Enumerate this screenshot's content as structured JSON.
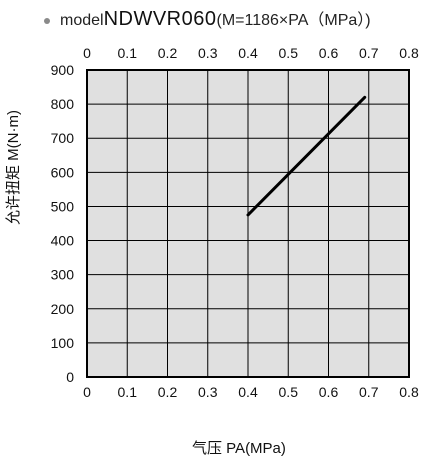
{
  "title": {
    "prefix": "model",
    "model": "NDWVR060",
    "formula": "(M=1186×PA（MPa）)"
  },
  "chart_data": {
    "type": "line",
    "title": "modelNDWVR060(M=1186×PA（MPa）)",
    "xlabel": "气压 PA(MPa)",
    "ylabel": "允许扭矩 M(N·m)",
    "xlim": [
      0,
      0.8
    ],
    "ylim": [
      0,
      900
    ],
    "x_ticks": [
      "0",
      "0.1",
      "0.2",
      "0.3",
      "0.4",
      "0.5",
      "0.6",
      "0.7",
      "0.8"
    ],
    "y_ticks": [
      "0",
      "100",
      "200",
      "300",
      "400",
      "500",
      "600",
      "700",
      "800",
      "900"
    ],
    "grid": true,
    "series": [
      {
        "x": [
          0.4,
          0.69
        ],
        "y": [
          475,
          820
        ]
      }
    ],
    "colors": {
      "background": "#e0e0e0",
      "line": "#000000",
      "grid": "#000000"
    }
  }
}
